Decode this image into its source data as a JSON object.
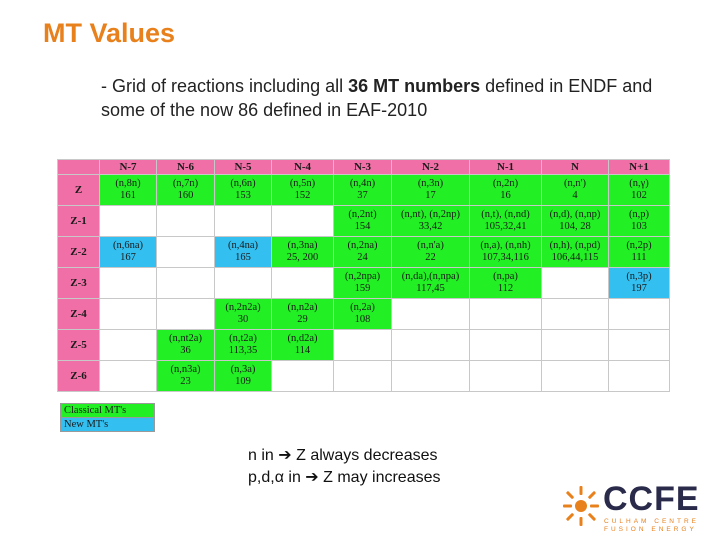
{
  "title": "MT Values",
  "bullet": {
    "prefix": "- Grid of reactions including all ",
    "bold": "36 MT numbers",
    "suffix": " defined in ENDF and some of the now 86 defined in EAF-2010"
  },
  "table": {
    "columns": [
      "",
      "N-7",
      "N-6",
      "N-5",
      "N-4",
      "N-3",
      "N-2",
      "N-1",
      "N",
      "N+1"
    ],
    "rows": [
      {
        "label": "Z",
        "cells": [
          {
            "c": "g",
            "l1": "(n,8n)",
            "l2": "161"
          },
          {
            "c": "g",
            "l1": "(n,7n)",
            "l2": "160"
          },
          {
            "c": "g",
            "l1": "(n,6n)",
            "l2": "153"
          },
          {
            "c": "g",
            "l1": "(n,5n)",
            "l2": "152"
          },
          {
            "c": "g",
            "l1": "(n,4n)",
            "l2": "37"
          },
          {
            "c": "g",
            "l1": "(n,3n)",
            "l2": "17"
          },
          {
            "c": "g",
            "l1": "(n,2n)",
            "l2": "16"
          },
          {
            "c": "g",
            "l1": "(n,n')",
            "l2": "4"
          },
          {
            "c": "g",
            "l1": "(n,γ)",
            "l2": "102"
          }
        ]
      },
      {
        "label": "Z-1",
        "cells": [
          {
            "c": "w",
            "l1": "",
            "l2": ""
          },
          {
            "c": "w",
            "l1": "",
            "l2": ""
          },
          {
            "c": "w",
            "l1": "",
            "l2": ""
          },
          {
            "c": "w",
            "l1": "",
            "l2": ""
          },
          {
            "c": "g",
            "l1": "(n,2nt)",
            "l2": "154"
          },
          {
            "c": "g",
            "l1": "(n,nt), (n,2np)",
            "l2": "33,42"
          },
          {
            "c": "g",
            "l1": "(n,t), (n,nd)",
            "l2": "105,32,41"
          },
          {
            "c": "g",
            "l1": "(n,d), (n,np)",
            "l2": "104, 28"
          },
          {
            "c": "g",
            "l1": "(n,p)",
            "l2": "103"
          }
        ]
      },
      {
        "label": "Z-2",
        "cells": [
          {
            "c": "b",
            "l1": "(n,6na)",
            "l2": "167"
          },
          {
            "c": "w",
            "l1": "",
            "l2": ""
          },
          {
            "c": "b",
            "l1": "(n,4na)",
            "l2": "165"
          },
          {
            "c": "g",
            "l1": "(n,3na)",
            "l2": "25, 200"
          },
          {
            "c": "g",
            "l1": "(n,2na)",
            "l2": "24"
          },
          {
            "c": "g",
            "l1": "(n,n'a)",
            "l2": "22"
          },
          {
            "c": "g",
            "l1": "(n,a), (n,nh)",
            "l2": "107,34,116"
          },
          {
            "c": "g",
            "l1": "(n,h), (n,pd)",
            "l2": "106,44,115"
          },
          {
            "c": "g",
            "l1": "(n,2p)",
            "l2": "111"
          }
        ]
      },
      {
        "label": "Z-3",
        "cells": [
          {
            "c": "w",
            "l1": "",
            "l2": ""
          },
          {
            "c": "w",
            "l1": "",
            "l2": ""
          },
          {
            "c": "w",
            "l1": "",
            "l2": ""
          },
          {
            "c": "w",
            "l1": "",
            "l2": ""
          },
          {
            "c": "g",
            "l1": "(n,2npa)",
            "l2": "159"
          },
          {
            "c": "g",
            "l1": "(n,da),(n,npa)",
            "l2": "117,45"
          },
          {
            "c": "g",
            "l1": "(n,pa)",
            "l2": "112"
          },
          {
            "c": "w",
            "l1": "",
            "l2": ""
          },
          {
            "c": "b",
            "l1": "(n,3p)",
            "l2": "197"
          }
        ]
      },
      {
        "label": "Z-4",
        "cells": [
          {
            "c": "w",
            "l1": "",
            "l2": ""
          },
          {
            "c": "w",
            "l1": "",
            "l2": ""
          },
          {
            "c": "g",
            "l1": "(n,2n2a)",
            "l2": "30"
          },
          {
            "c": "g",
            "l1": "(n,n2a)",
            "l2": "29"
          },
          {
            "c": "g",
            "l1": "(n,2a)",
            "l2": "108"
          },
          {
            "c": "w",
            "l1": "",
            "l2": ""
          },
          {
            "c": "w",
            "l1": "",
            "l2": ""
          },
          {
            "c": "w",
            "l1": "",
            "l2": ""
          },
          {
            "c": "w",
            "l1": "",
            "l2": ""
          }
        ]
      },
      {
        "label": "Z-5",
        "cells": [
          {
            "c": "w",
            "l1": "",
            "l2": ""
          },
          {
            "c": "g",
            "l1": "(n,nt2a)",
            "l2": "36"
          },
          {
            "c": "g",
            "l1": "(n,t2a)",
            "l2": "113,35"
          },
          {
            "c": "g",
            "l1": "(n,d2a)",
            "l2": "114"
          },
          {
            "c": "w",
            "l1": "",
            "l2": ""
          },
          {
            "c": "w",
            "l1": "",
            "l2": ""
          },
          {
            "c": "w",
            "l1": "",
            "l2": ""
          },
          {
            "c": "w",
            "l1": "",
            "l2": ""
          },
          {
            "c": "w",
            "l1": "",
            "l2": ""
          }
        ]
      },
      {
        "label": "Z-6",
        "cells": [
          {
            "c": "w",
            "l1": "",
            "l2": ""
          },
          {
            "c": "g",
            "l1": "(n,n3a)",
            "l2": "23"
          },
          {
            "c": "g",
            "l1": "(n,3a)",
            "l2": "109"
          },
          {
            "c": "w",
            "l1": "",
            "l2": ""
          },
          {
            "c": "w",
            "l1": "",
            "l2": ""
          },
          {
            "c": "w",
            "l1": "",
            "l2": ""
          },
          {
            "c": "w",
            "l1": "",
            "l2": ""
          },
          {
            "c": "w",
            "l1": "",
            "l2": ""
          },
          {
            "c": "w",
            "l1": "",
            "l2": ""
          }
        ]
      }
    ]
  },
  "legend": {
    "classical": "Classical MT's",
    "new": "New MT's"
  },
  "notes": {
    "line1": "n in ➔ Z always decreases",
    "line2": "p,d,α in ➔ Z may increases"
  },
  "logo": {
    "name": "CCFE",
    "sub1": "CULHAM CENTRE",
    "sub2": "FUSION ENERGY"
  },
  "colors": {
    "title": "#e8801c",
    "header": "#f06fa6",
    "classical": "#22f024",
    "new": "#33bff0"
  }
}
